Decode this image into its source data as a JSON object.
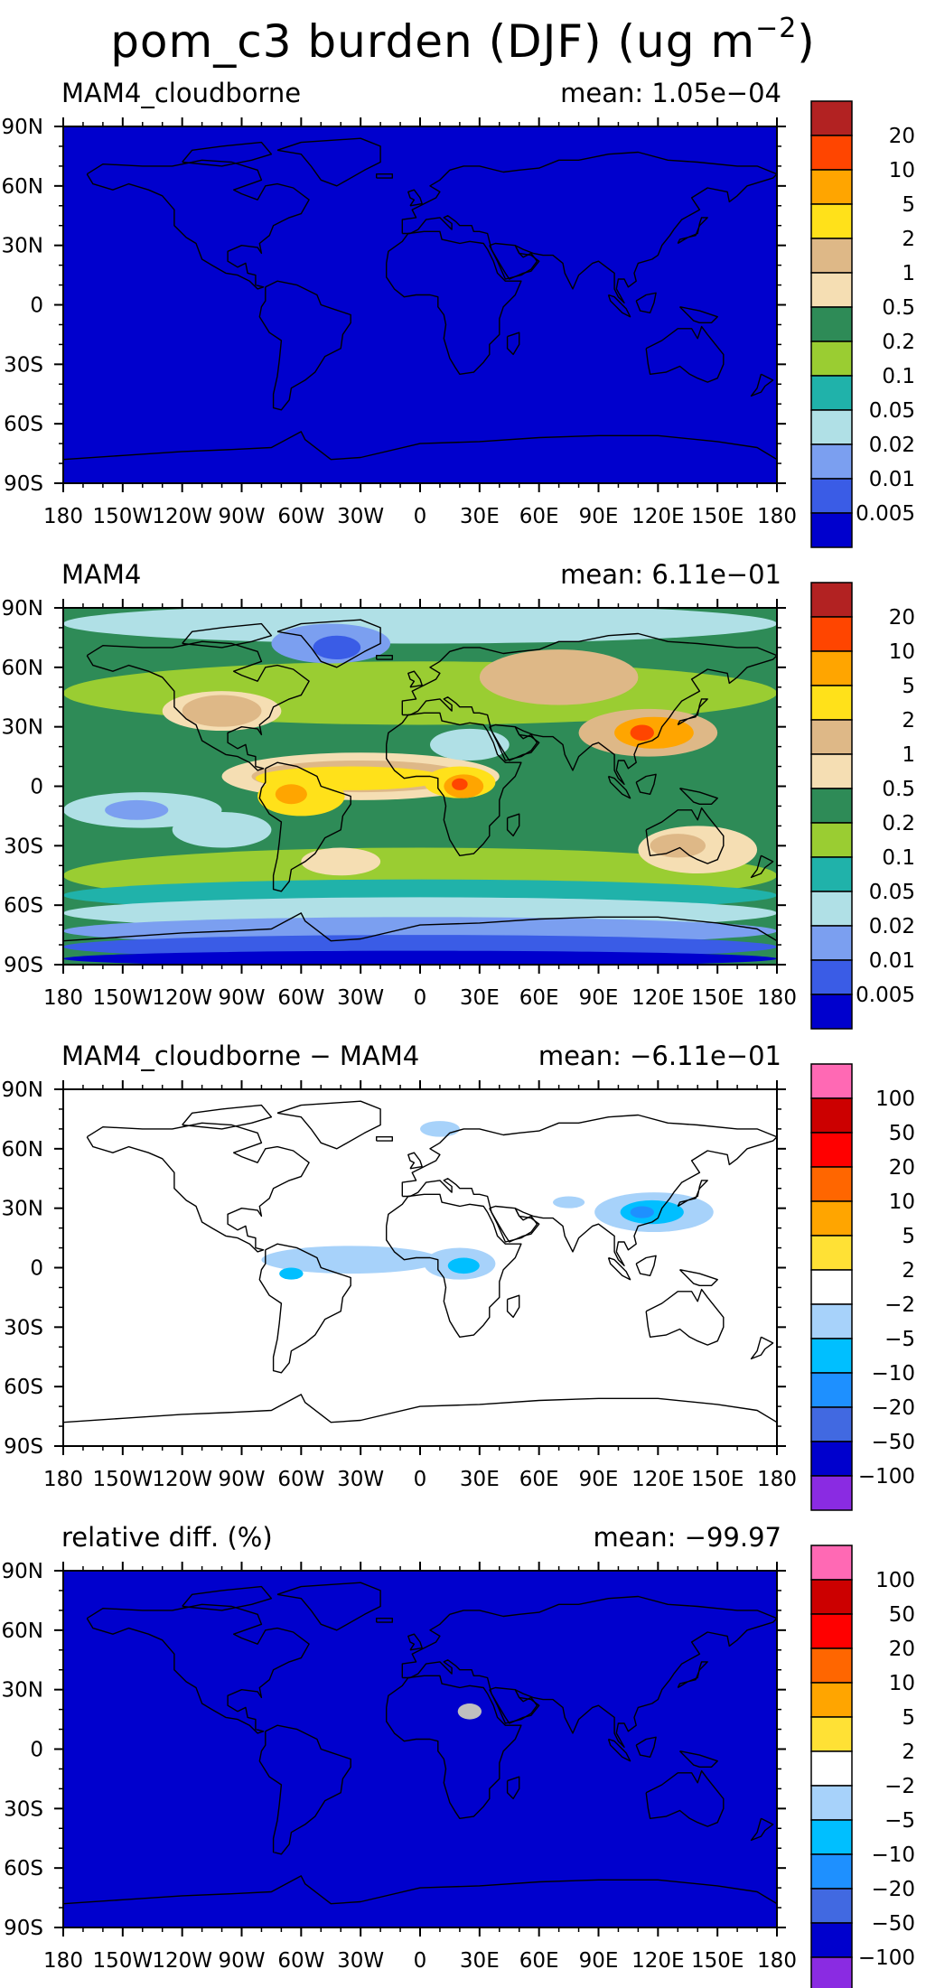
{
  "figure": {
    "title_main": "pom_c3 burden (DJF) (ug m",
    "title_sup": "−2",
    "title_end": ")"
  },
  "lat_ticks": [
    "90N",
    "60N",
    "30N",
    "0",
    "30S",
    "60S",
    "90S"
  ],
  "lon_ticks": [
    "180",
    "150W",
    "120W",
    "90W",
    "60W",
    "30W",
    "0",
    "30E",
    "60E",
    "90E",
    "120E",
    "150E",
    "180"
  ],
  "colorbar_burden": {
    "labels": [
      "20",
      "10",
      "5",
      "2",
      "1",
      "0.5",
      "0.2",
      "0.1",
      "0.05",
      "0.02",
      "0.01",
      "0.005"
    ],
    "colors": [
      "#b22222",
      "#ff4500",
      "#ffa500",
      "#ffe11a",
      "#deb887",
      "#f5deb3",
      "#2e8b57",
      "#9acd32",
      "#20b2aa",
      "#b0e0e6",
      "#7b9ff0",
      "#3a5ce6",
      "#0000cd"
    ]
  },
  "colorbar_diff": {
    "labels": [
      "100",
      "50",
      "20",
      "10",
      "5",
      "2",
      "−2",
      "−5",
      "−10",
      "−20",
      "−50",
      "−100"
    ],
    "colors": [
      "#ff69b4",
      "#cc0000",
      "#ff0000",
      "#ff6600",
      "#ffa500",
      "#ffe135",
      "#ffffff",
      "#a7d2fa",
      "#00bfff",
      "#1e90ff",
      "#4169e1",
      "#0000cd",
      "#8a2be2"
    ]
  },
  "chart_data": [
    {
      "type": "heatmap",
      "title": "MAM4_cloudborne",
      "mean_label": "mean:  1.05e−04",
      "mean": 0.000105,
      "xlim": [
        -180,
        180
      ],
      "ylim": [
        -90,
        90
      ],
      "field_description": "uniform lowest level",
      "background": "#0000cd",
      "regions": []
    },
    {
      "type": "heatmap",
      "title": "MAM4",
      "mean_label": "mean:  6.11e−01",
      "mean": 0.611,
      "xlim": [
        -180,
        180
      ],
      "ylim": [
        -90,
        90
      ],
      "background": "#2e8b57",
      "regions": [
        {
          "fill": "#9acd32",
          "rx": 180,
          "ry": 16,
          "lon": 0,
          "lat": 47
        },
        {
          "fill": "#9acd32",
          "rx": 180,
          "ry": 14,
          "lon": 0,
          "lat": -45
        },
        {
          "fill": "#b0e0e6",
          "rx": 180,
          "ry": 10,
          "lon": 0,
          "lat": 82
        },
        {
          "fill": "#20b2aa",
          "rx": 180,
          "ry": 8,
          "lon": 0,
          "lat": -55
        },
        {
          "fill": "#b0e0e6",
          "rx": 180,
          "ry": 8,
          "lon": 0,
          "lat": -64
        },
        {
          "fill": "#7b9ff0",
          "rx": 180,
          "ry": 7,
          "lon": 0,
          "lat": -73
        },
        {
          "fill": "#3a5ce6",
          "rx": 180,
          "ry": 6,
          "lon": 0,
          "lat": -81
        },
        {
          "fill": "#0000cd",
          "rx": 180,
          "ry": 4,
          "lon": 0,
          "lat": -87
        },
        {
          "fill": "#7b9ff0",
          "rx": 30,
          "ry": 10,
          "lon": -45,
          "lat": 72
        },
        {
          "fill": "#3a5ce6",
          "rx": 12,
          "ry": 6,
          "lon": -42,
          "lat": 70
        },
        {
          "fill": "#b0e0e6",
          "rx": 40,
          "ry": 9,
          "lon": -140,
          "lat": -12
        },
        {
          "fill": "#7b9ff0",
          "rx": 16,
          "ry": 5,
          "lon": -143,
          "lat": -12
        },
        {
          "fill": "#b0e0e6",
          "rx": 25,
          "ry": 9,
          "lon": -100,
          "lat": -22
        },
        {
          "fill": "#f5deb3",
          "rx": 70,
          "ry": 12,
          "lon": -30,
          "lat": 5
        },
        {
          "fill": "#deb887",
          "rx": 55,
          "ry": 8,
          "lon": -30,
          "lat": 5
        },
        {
          "fill": "#ffe11a",
          "rx": 48,
          "ry": 6,
          "lon": -35,
          "lat": 4
        },
        {
          "fill": "#ffe11a",
          "rx": 22,
          "ry": 10,
          "lon": -60,
          "lat": -5
        },
        {
          "fill": "#ffa500",
          "rx": 8,
          "ry": 5,
          "lon": -65,
          "lat": -4
        },
        {
          "fill": "#ffe11a",
          "rx": 18,
          "ry": 8,
          "lon": 20,
          "lat": 2
        },
        {
          "fill": "#ffa500",
          "rx": 10,
          "ry": 6,
          "lon": 22,
          "lat": 0
        },
        {
          "fill": "#ff4500",
          "rx": 4,
          "ry": 3,
          "lon": 20,
          "lat": 1
        },
        {
          "fill": "#deb887",
          "rx": 40,
          "ry": 14,
          "lon": 70,
          "lat": 55
        },
        {
          "fill": "#f5deb3",
          "rx": 30,
          "ry": 10,
          "lon": -100,
          "lat": 38
        },
        {
          "fill": "#deb887",
          "rx": 20,
          "ry": 8,
          "lon": -100,
          "lat": 38
        },
        {
          "fill": "#deb887",
          "rx": 35,
          "ry": 12,
          "lon": 115,
          "lat": 27
        },
        {
          "fill": "#ffa500",
          "rx": 20,
          "ry": 8,
          "lon": 118,
          "lat": 27
        },
        {
          "fill": "#ff4500",
          "rx": 6,
          "ry": 4,
          "lon": 112,
          "lat": 27
        },
        {
          "fill": "#f5deb3",
          "rx": 30,
          "ry": 12,
          "lon": 140,
          "lat": -32
        },
        {
          "fill": "#deb887",
          "rx": 14,
          "ry": 6,
          "lon": 130,
          "lat": -30
        },
        {
          "fill": "#f5deb3",
          "rx": 20,
          "ry": 7,
          "lon": -40,
          "lat": -38
        },
        {
          "fill": "#3a5ce6",
          "rx": 14,
          "ry": 6,
          "lon": 20,
          "lat": 20
        },
        {
          "fill": "#0000cd",
          "rx": 7,
          "ry": 3,
          "lon": 22,
          "lat": 19
        },
        {
          "fill": "#b0e0e6",
          "rx": 20,
          "ry": 8,
          "lon": 25,
          "lat": 21
        }
      ]
    },
    {
      "type": "heatmap",
      "title": "MAM4_cloudborne − MAM4",
      "mean_label": "mean:  −6.11e−01",
      "mean": -0.611,
      "xlim": [
        -180,
        180
      ],
      "ylim": [
        -90,
        90
      ],
      "background": "#ffffff",
      "regions": [
        {
          "fill": "#a7d2fa",
          "rx": 45,
          "ry": 7,
          "lon": -35,
          "lat": 4
        },
        {
          "fill": "#a7d2fa",
          "rx": 18,
          "ry": 8,
          "lon": 20,
          "lat": 2
        },
        {
          "fill": "#00bfff",
          "rx": 8,
          "ry": 4,
          "lon": 22,
          "lat": 1
        },
        {
          "fill": "#00bfff",
          "rx": 6,
          "ry": 3,
          "lon": -65,
          "lat": -3
        },
        {
          "fill": "#a7d2fa",
          "rx": 30,
          "ry": 10,
          "lon": 118,
          "lat": 28
        },
        {
          "fill": "#00bfff",
          "rx": 16,
          "ry": 6,
          "lon": 117,
          "lat": 28
        },
        {
          "fill": "#1e90ff",
          "rx": 6,
          "ry": 3,
          "lon": 112,
          "lat": 28
        },
        {
          "fill": "#a7d2fa",
          "rx": 10,
          "ry": 4,
          "lon": 10,
          "lat": 70
        },
        {
          "fill": "#a7d2fa",
          "rx": 8,
          "ry": 3,
          "lon": 75,
          "lat": 33
        }
      ]
    },
    {
      "type": "heatmap",
      "title": "relative diff. (%)",
      "mean_label": "mean:  −99.97",
      "mean": -99.97,
      "xlim": [
        -180,
        180
      ],
      "ylim": [
        -90,
        90
      ],
      "background": "#0000cd",
      "regions": [
        {
          "fill": "#bfbfbf",
          "rx": 6,
          "ry": 4,
          "lon": 25,
          "lat": 19
        }
      ]
    }
  ]
}
